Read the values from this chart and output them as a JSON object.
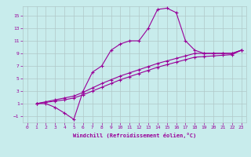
{
  "background_color": "#c8ecec",
  "grid_color": "#b0c8c8",
  "line_color": "#990099",
  "xlabel": "Windchill (Refroidissement éolien,°C)",
  "xlim": [
    -0.5,
    23.5
  ],
  "ylim": [
    -2.0,
    16.5
  ],
  "yticks": [
    -1,
    1,
    3,
    5,
    7,
    9,
    11,
    13,
    15
  ],
  "xticks": [
    0,
    1,
    2,
    3,
    4,
    5,
    6,
    7,
    8,
    9,
    10,
    11,
    12,
    13,
    14,
    15,
    16,
    17,
    18,
    19,
    20,
    21,
    22,
    23
  ],
  "curve1_x": [
    1,
    2,
    3,
    4,
    5,
    6,
    7,
    8,
    9,
    10,
    11,
    12,
    13,
    14,
    15,
    16,
    17,
    18,
    19,
    20,
    21,
    22,
    23
  ],
  "curve1_y": [
    1,
    1,
    0.4,
    -0.5,
    -1.5,
    3.0,
    6.0,
    7.0,
    9.5,
    10.5,
    11.0,
    11.0,
    13.0,
    16.0,
    16.2,
    15.5,
    11.0,
    9.5,
    9.0,
    9.0,
    9.0,
    9.0,
    9.5
  ],
  "curve2_x": [
    1,
    2,
    3,
    4,
    5,
    6,
    7,
    8,
    9,
    10,
    11,
    12,
    13,
    14,
    15,
    16,
    17,
    18,
    19,
    20,
    21,
    22,
    23
  ],
  "curve2_y": [
    1,
    1.3,
    1.6,
    1.9,
    2.2,
    2.8,
    3.5,
    4.2,
    4.8,
    5.4,
    5.9,
    6.4,
    6.9,
    7.4,
    7.8,
    8.2,
    8.6,
    9.0,
    9.0,
    9.0,
    9.0,
    9.0,
    9.5
  ],
  "curve3_x": [
    1,
    2,
    3,
    4,
    5,
    6,
    7,
    8,
    9,
    10,
    11,
    12,
    13,
    14,
    15,
    16,
    17,
    18,
    19,
    20,
    21,
    22,
    23
  ],
  "curve3_y": [
    1,
    1.2,
    1.4,
    1.6,
    1.9,
    2.4,
    3.0,
    3.6,
    4.2,
    4.8,
    5.3,
    5.8,
    6.3,
    6.8,
    7.2,
    7.6,
    8.0,
    8.4,
    8.5,
    8.6,
    8.7,
    8.8,
    9.5
  ]
}
